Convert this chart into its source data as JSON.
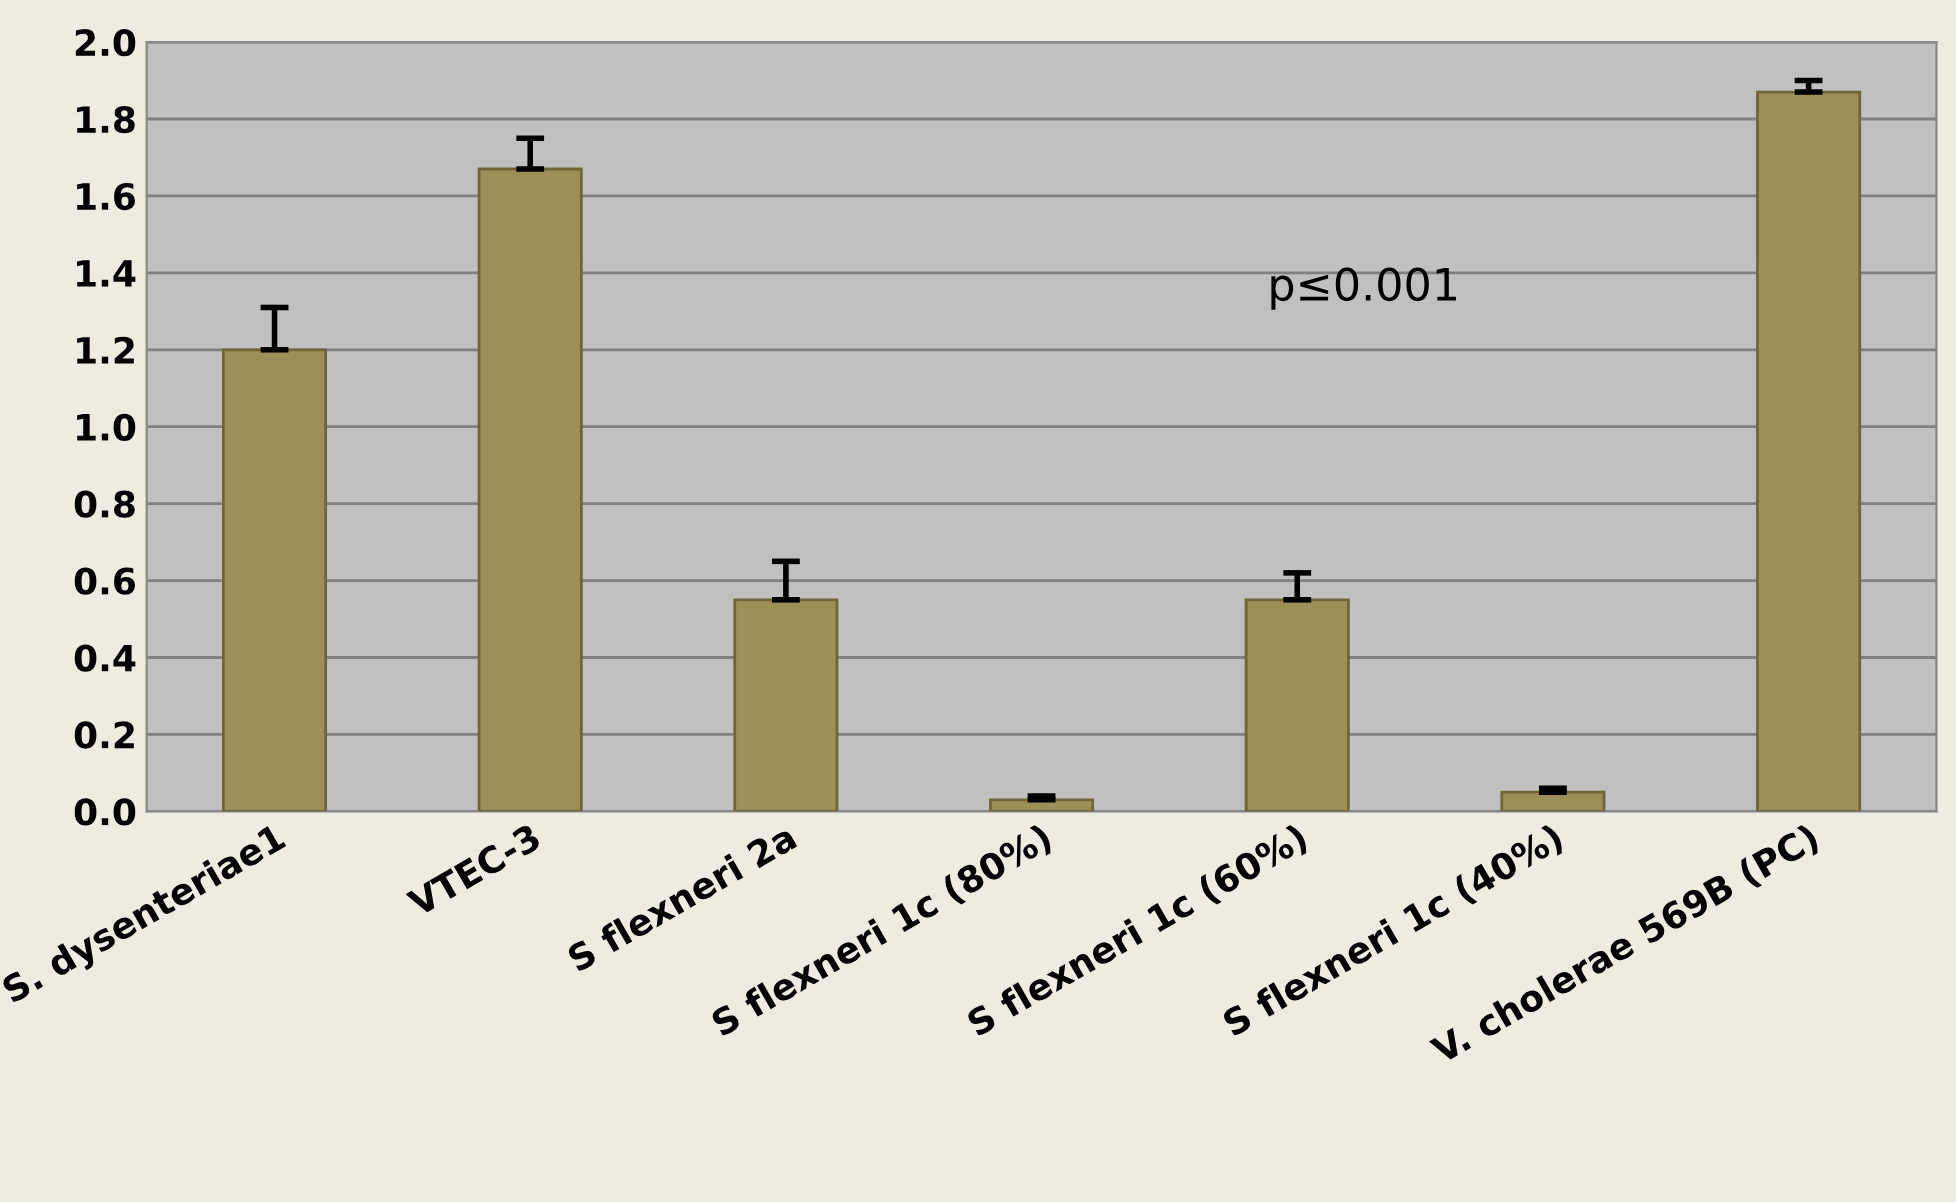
{
  "chart_data": {
    "type": "bar",
    "categories": [
      "S. dysenteriae1",
      "VTEC-3",
      "S flexneri 2a",
      "S flexneri 1c (80%)",
      "S flexneri 1c (60%)",
      "S flexneri 1c (40%)",
      "V. cholerae 569B (PC)"
    ],
    "values": [
      1.2,
      1.67,
      0.55,
      0.03,
      0.55,
      0.05,
      1.87
    ],
    "errors": [
      [
        1.2,
        1.31
      ],
      [
        1.67,
        1.75
      ],
      [
        0.55,
        0.65
      ],
      [
        0.03,
        0.04
      ],
      [
        0.55,
        0.62
      ],
      [
        0.05,
        0.06
      ],
      [
        1.87,
        1.9
      ]
    ],
    "color": "#9c9058",
    "ylim": [
      0,
      2
    ],
    "yticks": [
      {
        "value": 0,
        "label": "0.0"
      },
      0.2,
      0.4,
      0.6,
      0.8,
      {
        "value": 1,
        "label": "1.0"
      },
      1.2,
      1.4,
      1.6,
      1.8,
      {
        "value": 2,
        "label": "2.0"
      }
    ],
    "grid": "y",
    "annotations": [
      "p≤0.001"
    ]
  }
}
